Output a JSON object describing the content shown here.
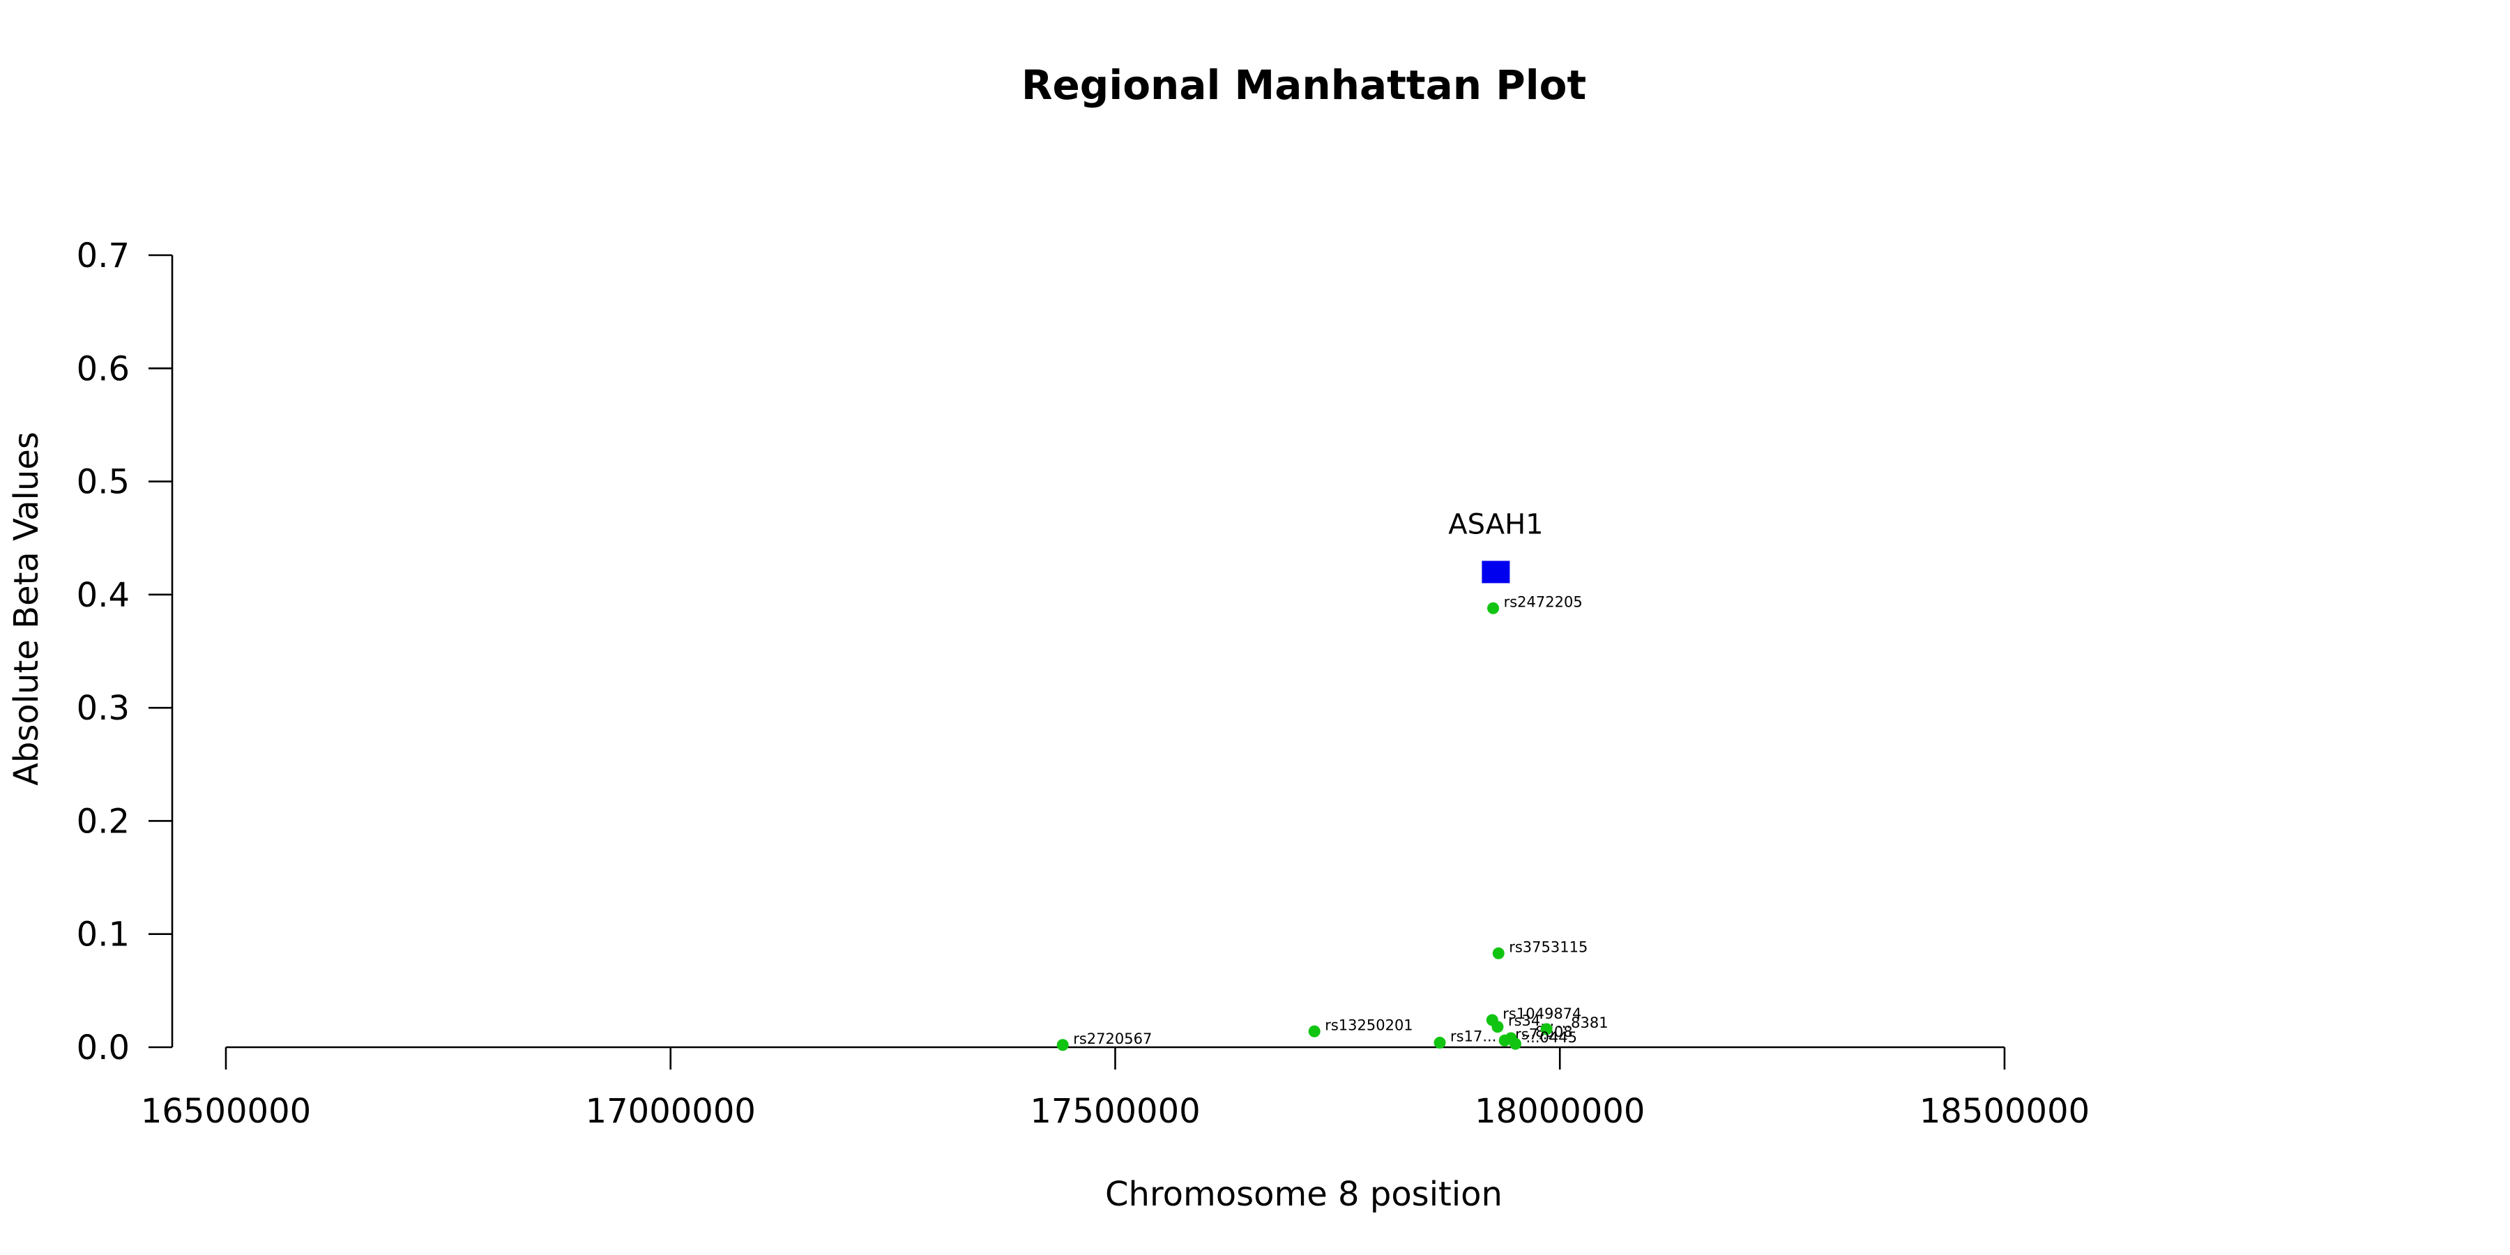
{
  "chart_data": {
    "type": "scatter",
    "title": "Regional Manhattan Plot",
    "xlabel": "Chromosome 8 position",
    "ylabel": "Absolute Beta Values",
    "xlim": [
      16440000,
      18560000
    ],
    "ylim": [
      0,
      0.7
    ],
    "x_ticks": [
      16500000,
      17000000,
      17500000,
      18000000,
      18500000
    ],
    "x_tick_labels": [
      "16500000",
      "17000000",
      "17500000",
      "18000000",
      "18500000"
    ],
    "y_ticks": [
      0,
      0.1,
      0.2,
      0.3,
      0.4,
      0.5,
      0.6,
      0.7
    ],
    "y_tick_labels": [
      "0.0",
      "0.1",
      "0.2",
      "0.3",
      "0.4",
      "0.5",
      "0.6",
      "0.7"
    ],
    "grid": false,
    "point_color": "#11c411",
    "gene_color": "#0000ee",
    "series": [
      {
        "points": [
          {
            "label": "rs2720567",
            "x": 17441000,
            "y": 0.002
          },
          {
            "label": "rs13250201",
            "x": 17724000,
            "y": 0.014
          },
          {
            "label": "rs17...",
            "x": 17865000,
            "y": 0.004
          },
          {
            "label": "rs1049874",
            "x": 17924000,
            "y": 0.024
          },
          {
            "label": "rs34...",
            "x": 17930000,
            "y": 0.018
          },
          {
            "label": "rs2472205",
            "x": 17925000,
            "y": 0.388
          },
          {
            "label": "rs3753115",
            "x": 17931000,
            "y": 0.083
          },
          {
            "label": "rs7...",
            "x": 17938000,
            "y": 0.006
          },
          {
            "label": "...8608",
            "x": 17945000,
            "y": 0.008
          },
          {
            "label": "...8381",
            "x": 17985000,
            "y": 0.016
          },
          {
            "label": "...0445",
            "x": 17950000,
            "y": 0.003
          }
        ]
      }
    ],
    "genes": [
      {
        "label": "ASAH1",
        "x": 17928000,
        "y": 0.42
      }
    ]
  }
}
